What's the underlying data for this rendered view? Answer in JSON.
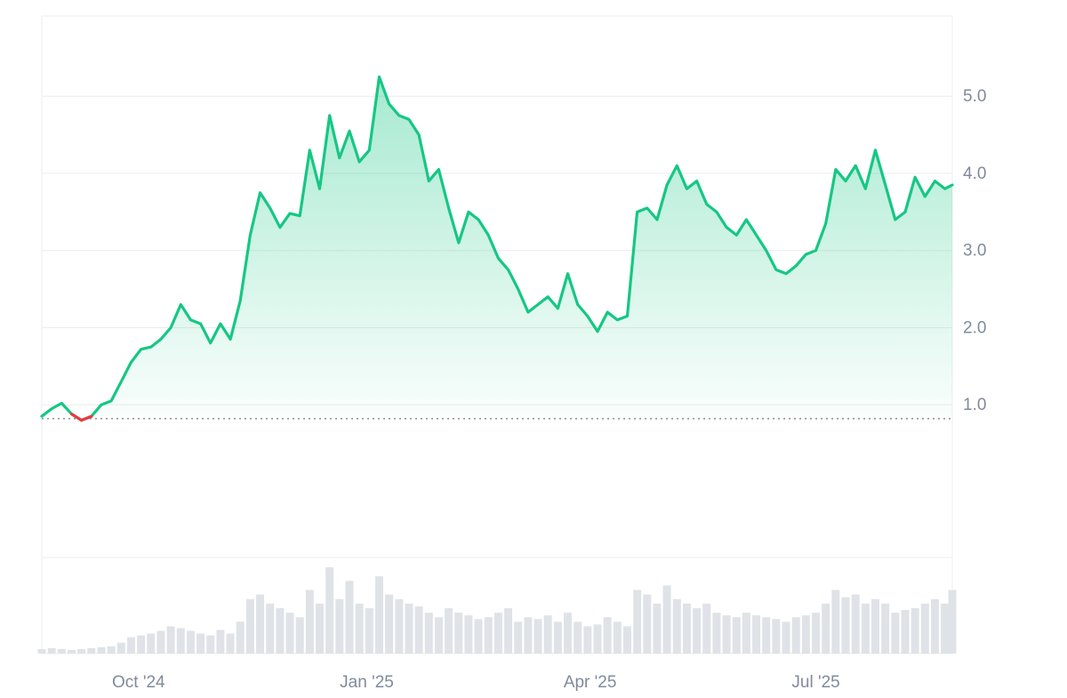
{
  "chart_data": {
    "type": "area",
    "title": "",
    "xlabel": "",
    "ylabel": "",
    "x_tick_labels": [
      "Oct '24",
      "Jan '25",
      "Apr '25",
      "Jul '25"
    ],
    "x_tick_dates": [
      "2024-10-01",
      "2025-01-01",
      "2025-04-01",
      "2025-07-01"
    ],
    "y_ticks": [
      1.0,
      2.0,
      3.0,
      4.0,
      5.0
    ],
    "y_tick_labels": [
      "1.0",
      "2.0",
      "3.0",
      "4.0",
      "5.0"
    ],
    "ylim": [
      -0.98,
      6.04
    ],
    "xlim": [
      "2024-08-23",
      "2025-08-25"
    ],
    "grid": true,
    "baseline": 0.82,
    "colors": {
      "up": "#16c784",
      "down": "#ea3943",
      "grid": "#ececec",
      "axis_text": "#808a9d",
      "volume": "#dfe3e8"
    },
    "series": [
      {
        "x": [
          "2024-08-23",
          "2024-08-27",
          "2024-08-31",
          "2024-09-04",
          "2024-09-08",
          "2024-09-12",
          "2024-09-16",
          "2024-09-20",
          "2024-09-24",
          "2024-09-28",
          "2024-10-02",
          "2024-10-06",
          "2024-10-10",
          "2024-10-14",
          "2024-10-18",
          "2024-10-22",
          "2024-10-26",
          "2024-10-30",
          "2024-11-03",
          "2024-11-07",
          "2024-11-11",
          "2024-11-15",
          "2024-11-19",
          "2024-11-23",
          "2024-11-27",
          "2024-12-01",
          "2024-12-05",
          "2024-12-09",
          "2024-12-13",
          "2024-12-17",
          "2024-12-21",
          "2024-12-25",
          "2024-12-29",
          "2025-01-02",
          "2025-01-06",
          "2025-01-10",
          "2025-01-14",
          "2025-01-18",
          "2025-01-22",
          "2025-01-26",
          "2025-01-30",
          "2025-02-03",
          "2025-02-07",
          "2025-02-11",
          "2025-02-15",
          "2025-02-19",
          "2025-02-23",
          "2025-02-27",
          "2025-03-03",
          "2025-03-07",
          "2025-03-11",
          "2025-03-15",
          "2025-03-19",
          "2025-03-23",
          "2025-03-27",
          "2025-03-31",
          "2025-04-04",
          "2025-04-08",
          "2025-04-12",
          "2025-04-16",
          "2025-04-20",
          "2025-04-24",
          "2025-04-28",
          "2025-05-02",
          "2025-05-06",
          "2025-05-10",
          "2025-05-14",
          "2025-05-18",
          "2025-05-22",
          "2025-05-26",
          "2025-05-30",
          "2025-06-03",
          "2025-06-07",
          "2025-06-11",
          "2025-06-15",
          "2025-06-19",
          "2025-06-23",
          "2025-06-27",
          "2025-07-01",
          "2025-07-05",
          "2025-07-09",
          "2025-07-13",
          "2025-07-17",
          "2025-07-21",
          "2025-07-25",
          "2025-07-29",
          "2025-08-02",
          "2025-08-06",
          "2025-08-10",
          "2025-08-14",
          "2025-08-18",
          "2025-08-22",
          "2025-08-25"
        ],
        "values": [
          0.85,
          0.95,
          1.02,
          0.88,
          0.8,
          0.85,
          1.0,
          1.05,
          1.3,
          1.55,
          1.72,
          1.75,
          1.85,
          2.0,
          2.3,
          2.1,
          2.05,
          1.8,
          2.05,
          1.85,
          2.35,
          3.2,
          3.75,
          3.55,
          3.3,
          3.48,
          3.45,
          4.3,
          3.8,
          4.75,
          4.2,
          4.55,
          4.15,
          4.3,
          5.25,
          4.9,
          4.75,
          4.7,
          4.5,
          3.9,
          4.05,
          3.55,
          3.1,
          3.5,
          3.4,
          3.2,
          2.9,
          2.75,
          2.5,
          2.2,
          2.3,
          2.4,
          2.25,
          2.7,
          2.3,
          2.15,
          1.95,
          2.2,
          2.1,
          2.15,
          3.5,
          3.55,
          3.4,
          3.85,
          4.1,
          3.8,
          3.9,
          3.6,
          3.5,
          3.3,
          3.2,
          3.4,
          3.2,
          3.0,
          2.75,
          2.7,
          2.8,
          2.95,
          3.0,
          3.35,
          4.05,
          3.9,
          4.1,
          3.8,
          4.3,
          3.85,
          3.4,
          3.5,
          3.95,
          3.7,
          3.9,
          3.8,
          3.85
        ]
      }
    ],
    "volume": [
      0.05,
      0.06,
      0.05,
      0.04,
      0.05,
      0.06,
      0.07,
      0.08,
      0.12,
      0.18,
      0.2,
      0.22,
      0.25,
      0.3,
      0.28,
      0.25,
      0.22,
      0.2,
      0.26,
      0.22,
      0.35,
      0.6,
      0.65,
      0.55,
      0.5,
      0.45,
      0.4,
      0.7,
      0.55,
      0.95,
      0.6,
      0.8,
      0.55,
      0.5,
      0.85,
      0.65,
      0.6,
      0.55,
      0.52,
      0.45,
      0.4,
      0.5,
      0.45,
      0.42,
      0.38,
      0.4,
      0.45,
      0.5,
      0.35,
      0.4,
      0.38,
      0.42,
      0.35,
      0.45,
      0.35,
      0.3,
      0.32,
      0.4,
      0.35,
      0.3,
      0.7,
      0.65,
      0.55,
      0.75,
      0.6,
      0.55,
      0.5,
      0.55,
      0.45,
      0.42,
      0.4,
      0.45,
      0.42,
      0.4,
      0.38,
      0.35,
      0.4,
      0.42,
      0.45,
      0.55,
      0.7,
      0.62,
      0.65,
      0.55,
      0.6,
      0.55,
      0.45,
      0.48,
      0.5,
      0.55,
      0.6,
      0.55,
      0.7
    ]
  }
}
